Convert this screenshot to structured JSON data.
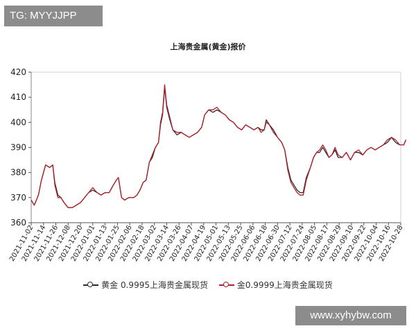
{
  "badge": {
    "text": "TG: MYYJJPP"
  },
  "watermark": {
    "text": "www.xyhybw.com"
  },
  "colors": {
    "series1": "#2b2b2b",
    "series2": "#b0202a"
  },
  "chart_data": {
    "type": "line",
    "title": "上海贵金属(黄金)报价",
    "xlabel": "",
    "ylabel": "",
    "ylim": [
      360,
      420
    ],
    "yticks": [
      360,
      370,
      380,
      390,
      400,
      410,
      420
    ],
    "grid": false,
    "legend_position": "bottom",
    "xticks": [
      "2021-11-02",
      "2021-11-14",
      "2021-11-26",
      "2021-12-08",
      "2021-12-20",
      "2022-01-01",
      "2022-01-13",
      "2022-01-25",
      "2022-02-06",
      "2022-02-18",
      "2022-03-02",
      "2022-03-14",
      "2022-03-26",
      "2022-04-07",
      "2022-04-19",
      "2022-05-01",
      "2022-05-13",
      "2022-05-25",
      "2022-06-06",
      "2022-06-18",
      "2022-06-30",
      "2022-07-12",
      "2022-07-24",
      "2022-08-05",
      "2022-08-17",
      "2022-08-29",
      "2022-09-10",
      "2022-09-22",
      "2022-10-04",
      "2022-10-16",
      "2022-10-28"
    ],
    "x": [
      "2021-11-02",
      "2021-11-05",
      "2021-11-09",
      "2021-11-12",
      "2021-11-16",
      "2021-11-20",
      "2021-11-23",
      "2021-11-25",
      "2021-11-28",
      "2021-12-01",
      "2021-12-04",
      "2021-12-08",
      "2021-12-12",
      "2021-12-16",
      "2021-12-20",
      "2021-12-24",
      "2021-12-28",
      "2022-01-01",
      "2022-01-05",
      "2022-01-09",
      "2022-01-13",
      "2022-01-17",
      "2022-01-21",
      "2022-01-24",
      "2022-01-26",
      "2022-01-29",
      "2022-02-01",
      "2022-02-05",
      "2022-02-08",
      "2022-02-10",
      "2022-02-13",
      "2022-02-16",
      "2022-02-19",
      "2022-02-22",
      "2022-02-25",
      "2022-02-28",
      "2022-03-03",
      "2022-03-06",
      "2022-03-08",
      "2022-03-10",
      "2022-03-12",
      "2022-03-14",
      "2022-03-17",
      "2022-03-20",
      "2022-03-24",
      "2022-03-28",
      "2022-04-01",
      "2022-04-05",
      "2022-04-09",
      "2022-04-13",
      "2022-04-17",
      "2022-04-20",
      "2022-04-24",
      "2022-04-28",
      "2022-05-02",
      "2022-05-06",
      "2022-05-10",
      "2022-05-14",
      "2022-05-18",
      "2022-05-22",
      "2022-05-26",
      "2022-05-30",
      "2022-06-03",
      "2022-06-07",
      "2022-06-11",
      "2022-06-14",
      "2022-06-17",
      "2022-06-19",
      "2022-06-22",
      "2022-06-26",
      "2022-06-30",
      "2022-07-04",
      "2022-07-07",
      "2022-07-10",
      "2022-07-13",
      "2022-07-16",
      "2022-07-19",
      "2022-07-22",
      "2022-07-25",
      "2022-07-28",
      "2022-08-01",
      "2022-08-04",
      "2022-08-07",
      "2022-08-10",
      "2022-08-13",
      "2022-08-16",
      "2022-08-19",
      "2022-08-22",
      "2022-08-25",
      "2022-08-28",
      "2022-09-01",
      "2022-09-05",
      "2022-09-09",
      "2022-09-13",
      "2022-09-17",
      "2022-09-21",
      "2022-09-25",
      "2022-09-29",
      "2022-10-03",
      "2022-10-07",
      "2022-10-11",
      "2022-10-15",
      "2022-10-19",
      "2022-10-23",
      "2022-10-27",
      "2022-10-31",
      "2022-11-02"
    ],
    "series": [
      {
        "name": "黄金 0.9995上海贵金属现货",
        "values": [
          369,
          367,
          371,
          377,
          383,
          382,
          383,
          376,
          371,
          370,
          368,
          366,
          366,
          367,
          368,
          370,
          372,
          373,
          372,
          371,
          372,
          372,
          375,
          377,
          378,
          370,
          369,
          370,
          370,
          370,
          371,
          373,
          376,
          377,
          384,
          386,
          390,
          392,
          399,
          403,
          414,
          406,
          401,
          397,
          395,
          396,
          395,
          394,
          395,
          396,
          398,
          403,
          405,
          404,
          405,
          404,
          403,
          401,
          400,
          398,
          397,
          399,
          398,
          397,
          398,
          397,
          397,
          401,
          399,
          397,
          394,
          392,
          389,
          382,
          377,
          375,
          373,
          372,
          372,
          378,
          382,
          386,
          388,
          388,
          390,
          388,
          386,
          387,
          389,
          386,
          386,
          388,
          385,
          388,
          388,
          387,
          389,
          390,
          389,
          390,
          391,
          392,
          394,
          392,
          391,
          391,
          393
        ]
      },
      {
        "name": "金0.9999上海贵金属现货",
        "values": [
          369,
          367,
          371,
          377,
          383,
          382,
          383,
          375,
          370,
          370,
          368,
          366,
          366,
          367,
          368,
          370,
          372,
          374,
          372,
          371,
          372,
          372,
          375,
          377,
          378,
          370,
          369,
          370,
          370,
          370,
          371,
          373,
          376,
          377,
          384,
          387,
          390,
          392,
          400,
          404,
          415,
          407,
          402,
          397,
          396,
          396,
          395,
          394,
          395,
          396,
          398,
          403,
          405,
          405,
          406,
          404,
          403,
          401,
          400,
          398,
          397,
          399,
          398,
          397,
          398,
          396,
          397,
          400,
          399,
          396,
          394,
          392,
          389,
          381,
          376,
          374,
          372,
          371,
          371,
          377,
          382,
          386,
          388,
          389,
          391,
          389,
          386,
          387,
          390,
          387,
          386,
          388,
          385,
          388,
          389,
          387,
          389,
          390,
          389,
          390,
          391,
          393,
          394,
          393,
          391,
          391,
          393
        ]
      }
    ]
  }
}
